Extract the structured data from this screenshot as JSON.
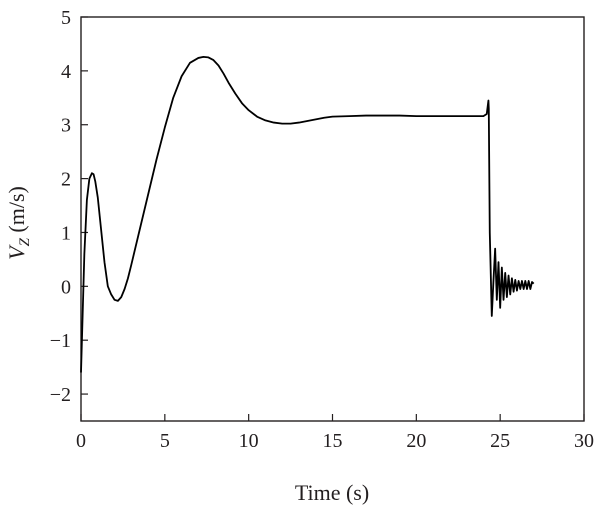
{
  "chart_data": {
    "type": "line",
    "xlabel": "Time (s)",
    "ylabel_main": "V",
    "ylabel_sub": "Z",
    "ylabel_unit": " (m/s)",
    "xlim": [
      0,
      30
    ],
    "ylim": [
      -2.5,
      5
    ],
    "x_ticks": [
      0,
      5,
      10,
      15,
      20,
      25,
      30
    ],
    "x_tick_labels": [
      "0",
      "5",
      "10",
      "15",
      "20",
      "25",
      "30"
    ],
    "y_ticks": [
      5,
      4,
      3,
      2,
      1,
      0,
      -1,
      -2
    ],
    "y_tick_labels": [
      "5",
      "4",
      "3",
      "2",
      "1",
      "0",
      "−1",
      "−2"
    ],
    "grid": false,
    "line_color": "#000000",
    "series": [
      {
        "x": [
          0,
          0.1,
          0.2,
          0.35,
          0.5,
          0.65,
          0.75,
          0.85,
          1.0,
          1.2,
          1.4,
          1.6,
          1.8,
          2.0,
          2.2,
          2.4,
          2.6,
          2.8,
          3.0,
          3.5,
          4.0,
          4.5,
          5.0,
          5.5,
          6.0,
          6.5,
          7.0,
          7.3,
          7.6,
          7.9,
          8.2,
          8.5,
          8.8,
          9.2,
          9.6,
          10.0,
          10.5,
          11.0,
          11.5,
          12.0,
          12.5,
          13.0,
          13.5,
          14.0,
          14.5,
          15.0,
          16.0,
          17.0,
          18.0,
          19.0,
          20.0,
          21.0,
          22.0,
          23.0,
          24.0,
          24.2,
          24.3,
          24.32,
          24.38,
          24.5,
          24.6,
          24.7,
          24.8,
          24.9,
          25.0,
          25.1,
          25.2,
          25.3,
          25.4,
          25.5,
          25.6,
          25.7,
          25.8,
          25.9,
          26.0,
          26.1,
          26.2,
          26.3,
          26.4,
          26.5,
          26.6,
          26.7,
          26.8,
          26.9,
          27.0
        ],
        "y": [
          -1.6,
          -0.5,
          0.6,
          1.6,
          2.0,
          2.1,
          2.08,
          1.95,
          1.65,
          1.05,
          0.45,
          0.0,
          -0.15,
          -0.25,
          -0.27,
          -0.2,
          -0.05,
          0.15,
          0.4,
          1.05,
          1.7,
          2.35,
          2.95,
          3.5,
          3.9,
          4.15,
          4.24,
          4.26,
          4.25,
          4.2,
          4.1,
          3.95,
          3.78,
          3.58,
          3.4,
          3.27,
          3.15,
          3.08,
          3.04,
          3.02,
          3.02,
          3.04,
          3.07,
          3.1,
          3.13,
          3.15,
          3.16,
          3.17,
          3.17,
          3.17,
          3.16,
          3.16,
          3.16,
          3.16,
          3.16,
          3.2,
          3.45,
          3.3,
          1.0,
          -0.55,
          0.1,
          0.7,
          -0.25,
          0.45,
          -0.4,
          0.35,
          -0.25,
          0.25,
          -0.2,
          0.2,
          -0.15,
          0.15,
          -0.1,
          0.12,
          -0.08,
          0.1,
          -0.05,
          0.1,
          -0.05,
          0.1,
          -0.05,
          0.1,
          -0.05,
          0.08,
          0.05
        ]
      }
    ]
  }
}
